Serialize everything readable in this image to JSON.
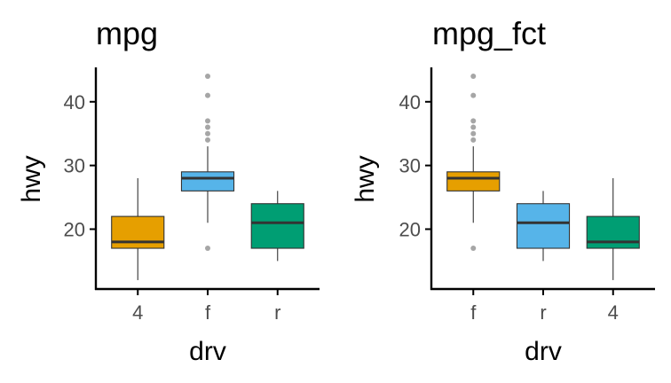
{
  "chart_data": [
    {
      "type": "boxplot",
      "title": "mpg",
      "xlabel": "drv",
      "ylabel": "hwy",
      "ylim": [
        10.6,
        45.4
      ],
      "yticks": [
        20,
        30,
        40
      ],
      "categories": [
        "4",
        "f",
        "r"
      ],
      "boxes": [
        {
          "category": "4",
          "min": 12,
          "q1": 17,
          "median": 18,
          "q3": 22,
          "max": 28,
          "color": "#E69F00",
          "outliers": []
        },
        {
          "category": "f",
          "min": 21,
          "q1": 26,
          "median": 28,
          "q3": 29,
          "max": 33,
          "color": "#56B4E9",
          "outliers": [
            17,
            34,
            35,
            36,
            37,
            41,
            44
          ]
        },
        {
          "category": "r",
          "min": 15,
          "q1": 17,
          "median": 21,
          "q3": 24,
          "max": 26,
          "color": "#009E73",
          "outliers": []
        }
      ]
    },
    {
      "type": "boxplot",
      "title": "mpg_fct",
      "xlabel": "drv",
      "ylabel": "hwy",
      "ylim": [
        10.6,
        45.4
      ],
      "yticks": [
        20,
        30,
        40
      ],
      "categories": [
        "f",
        "r",
        "4"
      ],
      "boxes": [
        {
          "category": "f",
          "min": 21,
          "q1": 26,
          "median": 28,
          "q3": 29,
          "max": 33,
          "color": "#E69F00",
          "outliers": [
            17,
            34,
            35,
            36,
            37,
            41,
            44
          ]
        },
        {
          "category": "r",
          "min": 15,
          "q1": 17,
          "median": 21,
          "q3": 24,
          "max": 26,
          "color": "#56B4E9",
          "outliers": []
        },
        {
          "category": "4",
          "min": 12,
          "q1": 17,
          "median": 18,
          "q3": 22,
          "max": 28,
          "color": "#009E73",
          "outliers": []
        }
      ]
    }
  ]
}
